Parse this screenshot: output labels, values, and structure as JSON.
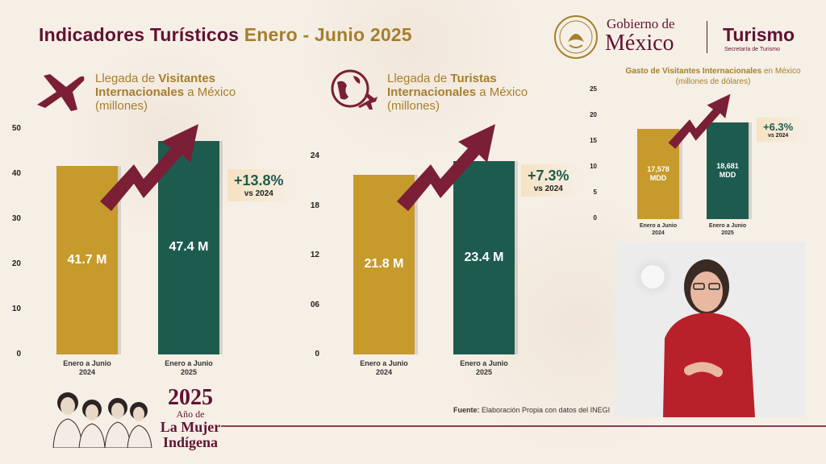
{
  "title": {
    "part1": "Indicadores Turísticos ",
    "part2": "Enero - Junio 2025"
  },
  "logo": {
    "line1": "Gobierno de",
    "line2": "México",
    "dept": "Turismo",
    "sub": "Secretaría de Turismo"
  },
  "panels": [
    {
      "title_a": "Llegada de ",
      "title_b": "Visitantes",
      "title_c": "Internacionales",
      "title_d": " a México",
      "title_e": "(millones)"
    },
    {
      "title_a": "Llegada de ",
      "title_b": "Turistas",
      "title_c": "Internacionales",
      "title_d": " a México",
      "title_e": "(millones)"
    },
    {
      "title_a": "Gasto de Visitantes Internacionales",
      "title_b": " en México",
      "title_c": "(millones de dólares)"
    }
  ],
  "colors": {
    "bar_2024": "#c79a2c",
    "bar_2025": "#1e5b4f",
    "arrow": "#7a1f36",
    "accent": "#611232"
  },
  "chart_data": [
    {
      "type": "bar",
      "title": "Llegada de Visitantes Internacionales a México (millones)",
      "categories": [
        "Enero a Junio 2024",
        "Enero a Junio 2025"
      ],
      "cat_lines": [
        [
          "Enero a Junio",
          "2024"
        ],
        [
          "Enero a Junio",
          "2025"
        ]
      ],
      "values": [
        41.7,
        47.4
      ],
      "value_labels": [
        "41.7 M",
        "47.4 M"
      ],
      "yticks": [
        "0",
        "10",
        "20",
        "30",
        "40",
        "50"
      ],
      "ylim": [
        0,
        50
      ],
      "change": "+13.8%",
      "change_note": "vs 2024"
    },
    {
      "type": "bar",
      "title": "Llegada de Turistas Internacionales a México (millones)",
      "categories": [
        "Enero a Junio 2024",
        "Enero a Junio 2025"
      ],
      "cat_lines": [
        [
          "Enero a Junio",
          "2024"
        ],
        [
          "Enero a Junio",
          "2025"
        ]
      ],
      "values": [
        21.8,
        23.4
      ],
      "value_labels": [
        "21.8 M",
        "23.4 M"
      ],
      "yticks": [
        "0",
        "06",
        "12",
        "18",
        "24"
      ],
      "ylim": [
        0,
        24
      ],
      "change": "+7.3%",
      "change_note": "vs 2024"
    },
    {
      "type": "bar",
      "title": "Gasto de Visitantes Internacionales en México (millones de dólares)",
      "categories": [
        "Enero a Junio 2024",
        "Enero a Junio 2025"
      ],
      "cat_lines": [
        [
          "Enero a Junio",
          "2024"
        ],
        [
          "Enero a Junio",
          "2025"
        ]
      ],
      "values": [
        17578,
        18681
      ],
      "value_labels": [
        [
          "17,578",
          "MDD"
        ],
        [
          "18,681",
          "MDD"
        ]
      ],
      "yticks": [
        "0",
        "5",
        "10",
        "15",
        "20",
        "25"
      ],
      "ylim": [
        0,
        25000
      ],
      "change": "+6.3%",
      "change_note": "vs 2024"
    }
  ],
  "footer": {
    "source_label": "Fuente:",
    "source_text": " Elaboración Propia con datos del INEGI"
  },
  "year_logo": {
    "year": "2025",
    "line1": "Año de",
    "line2": "La Mujer",
    "line3": "Indígena"
  }
}
